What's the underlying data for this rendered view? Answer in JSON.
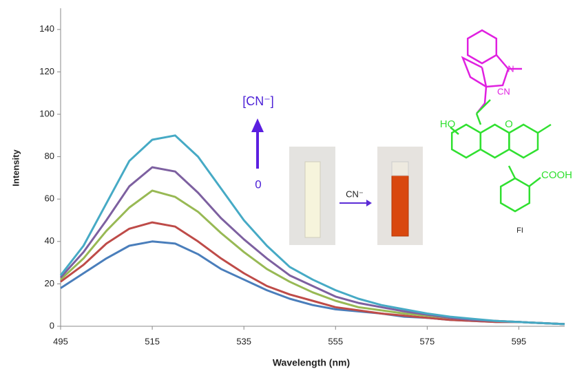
{
  "chart_data": {
    "type": "line",
    "x_label": "Wavelength (nm)",
    "y_label": "Intensity",
    "x": [
      495,
      500,
      505,
      510,
      515,
      520,
      525,
      530,
      535,
      540,
      545,
      550,
      555,
      560,
      565,
      570,
      575,
      580,
      585,
      590,
      595,
      600,
      605
    ],
    "series": [
      {
        "color": "#4a7ebb",
        "values": [
          18,
          25,
          32,
          38,
          40,
          39,
          34,
          27,
          22,
          17,
          13,
          10,
          8,
          7,
          6,
          4.5,
          4,
          3,
          2.5,
          2,
          2,
          1.5,
          1
        ]
      },
      {
        "color": "#be4b48",
        "values": [
          21,
          29,
          39,
          46,
          49,
          47,
          40,
          32,
          25,
          19,
          15,
          12,
          9,
          7.5,
          6,
          5,
          4,
          3,
          2.5,
          2,
          2,
          1.5,
          1
        ]
      },
      {
        "color": "#98b954",
        "values": [
          22,
          32,
          45,
          56,
          64,
          61,
          54,
          44,
          35,
          27,
          21,
          16,
          12,
          9,
          7.5,
          6,
          5,
          4,
          3,
          2.5,
          2,
          1.5,
          1
        ]
      },
      {
        "color": "#7d60a0",
        "values": [
          23,
          35,
          50,
          66,
          75,
          73,
          63,
          51,
          41,
          32,
          24,
          19,
          14,
          11,
          9,
          7,
          5.5,
          4,
          3,
          2.5,
          2,
          1.5,
          1
        ]
      },
      {
        "color": "#46aac5",
        "values": [
          24,
          38,
          58,
          78,
          88,
          90,
          80,
          65,
          50,
          38,
          28,
          22,
          17,
          13,
          10,
          8,
          6,
          4.5,
          3.5,
          2.5,
          2,
          1.5,
          1
        ]
      }
    ],
    "xlim": [
      495,
      605
    ],
    "xticks": [
      495,
      515,
      535,
      555,
      575,
      595
    ],
    "ylim": [
      0,
      150
    ],
    "yticks": [
      0,
      20,
      40,
      60,
      80,
      100,
      120,
      140
    ],
    "annotations": {
      "arrow_top": "[CN⁻]",
      "arrow_bottom": "0",
      "cuvette_arrow": "CN⁻"
    },
    "structure": {
      "n": "N",
      "cn": "CN",
      "ho": "HO",
      "o": "O",
      "cooh": "COOH",
      "name": "FI"
    }
  }
}
